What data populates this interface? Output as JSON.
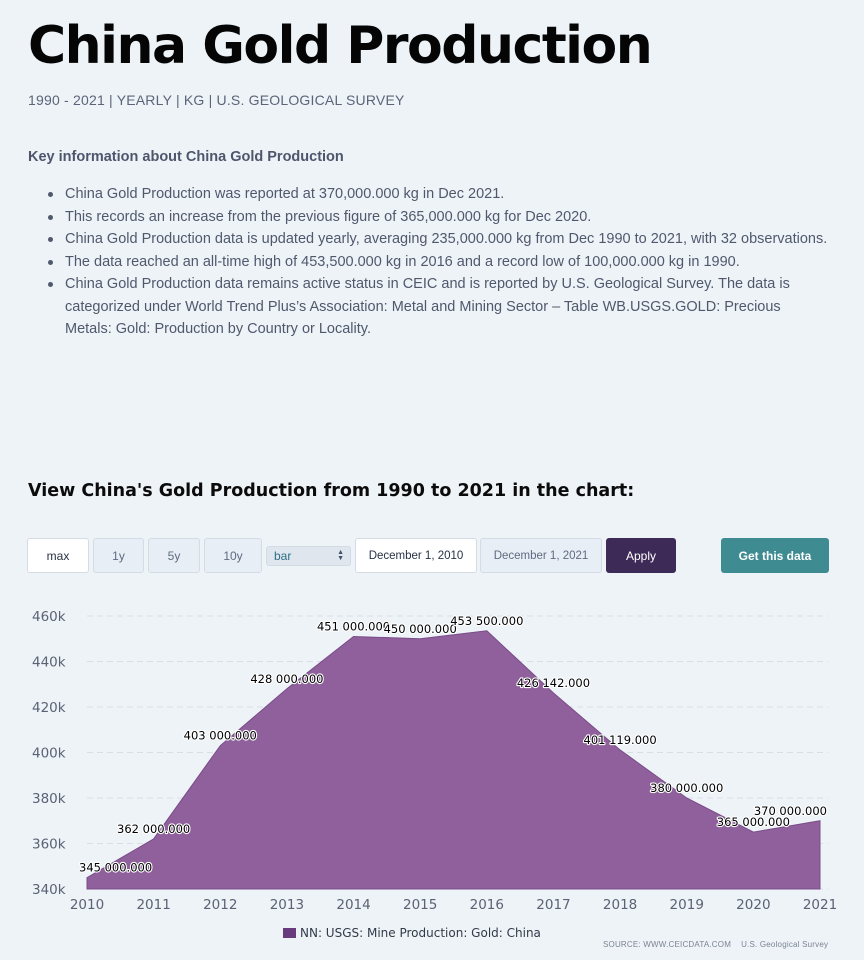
{
  "header": {
    "title": "China Gold Production",
    "subtitle": "1990 - 2021 | YEARLY | KG | U.S. GEOLOGICAL SURVEY"
  },
  "key_info": {
    "heading": "Key information about China Gold Production",
    "items": [
      "China Gold Production was reported at 370,000.000 kg in Dec 2021.",
      "This records an increase from the previous figure of 365,000.000 kg for Dec 2020.",
      "China Gold Production data is updated yearly, averaging 235,000.000 kg from Dec 1990 to 2021, with 32 observations.",
      "The data reached an all-time high of 453,500.000 kg in 2016 and a record low of 100,000.000 kg in 1990.",
      "China Gold Production data remains active status in CEIC and is reported by U.S. Geological Survey. The data is categorized under World Trend Plus’s Association: Metal and Mining Sector – Table WB.USGS.GOLD: Precious Metals: Gold: Production by Country or Locality."
    ]
  },
  "chart_section": {
    "heading": "View China's Gold Production from 1990 to 2021 in the chart:"
  },
  "controls": {
    "range_buttons": [
      "max",
      "1y",
      "5y",
      "10y"
    ],
    "chart_type_value": "bar",
    "start_date": "December 1, 2010",
    "end_date": "December 1, 2021",
    "apply_label": "Apply",
    "get_data_label": "Get this data"
  },
  "chart_data": {
    "type": "area",
    "x": [
      2010,
      2011,
      2012,
      2013,
      2014,
      2015,
      2016,
      2017,
      2018,
      2019,
      2020,
      2021
    ],
    "series": [
      {
        "name": "NN: USGS: Mine Production: Gold: China",
        "values": [
          345000,
          362000,
          403000,
          428000,
          451000,
          450000,
          453500,
          426142,
          401119,
          380000,
          365000,
          370000
        ],
        "labels": [
          "345 000.000",
          "362 000.000",
          "403 000.000",
          "428 000.000",
          "451 000.000",
          "450 000.000",
          "453 500.000",
          "426 142.000",
          "401 119.000",
          "380 000.000",
          "365 000.000",
          "370 000.000"
        ],
        "color": "#8f609b"
      }
    ],
    "ylim": [
      340000,
      460000
    ],
    "yticks": [
      340000,
      360000,
      380000,
      400000,
      420000,
      440000,
      460000
    ],
    "ytick_labels": [
      "340k",
      "360k",
      "380k",
      "400k",
      "420k",
      "440k",
      "460k"
    ],
    "xtick_labels": [
      "2010",
      "2011",
      "2012",
      "2013",
      "2014",
      "2015",
      "2016",
      "2017",
      "2018",
      "2019",
      "2020",
      "2021"
    ],
    "grid": true,
    "legend_position": "bottom-center",
    "legend_color": "#6a3a7e"
  },
  "footer": {
    "source": "SOURCE: WWW.CEICDATA.COM",
    "provider": "U.S. Geological Survey"
  }
}
